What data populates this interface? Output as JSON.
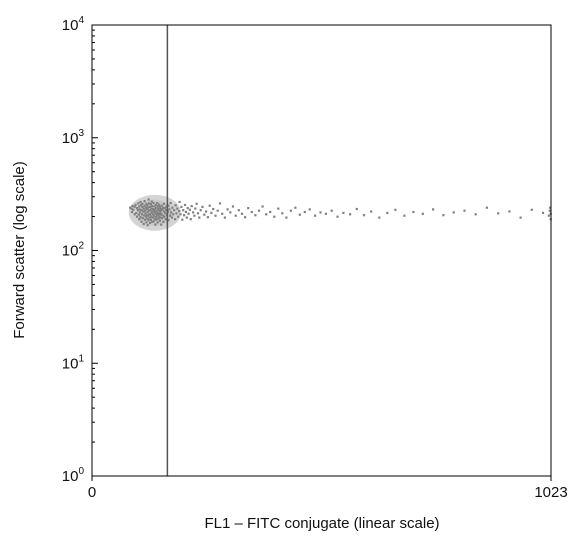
{
  "chart_data": {
    "type": "scatter",
    "title": "",
    "xlabel": "FL1 – FITC conjugate (linear scale)",
    "ylabel": "Forward scatter (log scale)",
    "x_scale": "linear",
    "y_scale": "log",
    "xlim": [
      0,
      1023
    ],
    "ylim": [
      1,
      10000
    ],
    "x_ticks": [
      {
        "value": 0,
        "label": "0"
      },
      {
        "value": 1023,
        "label": "1023"
      }
    ],
    "y_ticks": [
      {
        "value": 1,
        "base": "10",
        "exp": "0"
      },
      {
        "value": 10,
        "base": "10",
        "exp": "1"
      },
      {
        "value": 100,
        "base": "10",
        "exp": "2"
      },
      {
        "value": 1000,
        "base": "10",
        "exp": "3"
      },
      {
        "value": 10000,
        "base": "10",
        "exp": "4"
      }
    ],
    "gate_line": {
      "x": 168
    },
    "grid": false,
    "legend": "none",
    "colors": {
      "axis": "#000000",
      "gate": "#555555",
      "points": "#808080"
    },
    "series": [
      {
        "values": [
          [
            85,
            240
          ],
          [
            88,
            235
          ],
          [
            89,
            220
          ],
          [
            90,
            248
          ],
          [
            92,
            230
          ],
          [
            95,
            210
          ],
          [
            95,
            245
          ],
          [
            97,
            255
          ],
          [
            98,
            215
          ],
          [
            100,
            238
          ],
          [
            100,
            200
          ],
          [
            102,
            228
          ],
          [
            103,
            262
          ],
          [
            104,
            208
          ],
          [
            105,
            246
          ],
          [
            105,
            190
          ],
          [
            106,
            232
          ],
          [
            107,
            218
          ],
          [
            108,
            270
          ],
          [
            108,
            198
          ],
          [
            109,
            252
          ],
          [
            110,
            228
          ],
          [
            110,
            180
          ],
          [
            111,
            210
          ],
          [
            112,
            243
          ],
          [
            112,
            260
          ],
          [
            113,
            194
          ],
          [
            114,
            222
          ],
          [
            115,
            236
          ],
          [
            115,
            172
          ],
          [
            116,
            205
          ],
          [
            117,
            275
          ],
          [
            117,
            250
          ],
          [
            118,
            188
          ],
          [
            118,
            226
          ],
          [
            119,
            214
          ],
          [
            120,
            240
          ],
          [
            120,
            200
          ],
          [
            121,
            260
          ],
          [
            121,
            178
          ],
          [
            122,
            232
          ],
          [
            122,
            208
          ],
          [
            123,
            192
          ],
          [
            123,
            252
          ],
          [
            124,
            220
          ],
          [
            124,
            168
          ],
          [
            125,
            240
          ],
          [
            125,
            204
          ],
          [
            126,
            284
          ],
          [
            126,
            186
          ],
          [
            127,
            228
          ],
          [
            127,
            262
          ],
          [
            128,
            212
          ],
          [
            128,
            196
          ],
          [
            129,
            244
          ],
          [
            129,
            176
          ],
          [
            130,
            226
          ],
          [
            130,
            208
          ],
          [
            131,
            258
          ],
          [
            131,
            188
          ],
          [
            132,
            236
          ],
          [
            132,
            200
          ],
          [
            133,
            216
          ],
          [
            133,
            272
          ],
          [
            134,
            180
          ],
          [
            134,
            248
          ],
          [
            135,
            222
          ],
          [
            135,
            196
          ],
          [
            136,
            234
          ],
          [
            136,
            210
          ],
          [
            137,
            264
          ],
          [
            137,
            182
          ],
          [
            138,
            226
          ],
          [
            138,
            204
          ],
          [
            139,
            246
          ],
          [
            139,
            190
          ],
          [
            140,
            218
          ],
          [
            140,
            232
          ],
          [
            141,
            200
          ],
          [
            141,
            170
          ],
          [
            142,
            254
          ],
          [
            142,
            212
          ],
          [
            143,
            188
          ],
          [
            143,
            240
          ],
          [
            144,
            222
          ],
          [
            144,
            196
          ],
          [
            145,
            264
          ],
          [
            145,
            206
          ],
          [
            146,
            230
          ],
          [
            146,
            178
          ],
          [
            147,
            248
          ],
          [
            147,
            214
          ],
          [
            148,
            192
          ],
          [
            148,
            236
          ],
          [
            149,
            210
          ],
          [
            149,
            256
          ],
          [
            150,
            200
          ],
          [
            150,
            226
          ],
          [
            151,
            184
          ],
          [
            151,
            244
          ],
          [
            152,
            218
          ],
          [
            152,
            196
          ],
          [
            153,
            236
          ],
          [
            153,
            208
          ],
          [
            154,
            170
          ],
          [
            154,
            228
          ],
          [
            155,
            212
          ],
          [
            155,
            250
          ],
          [
            156,
            194
          ],
          [
            157,
            232
          ],
          [
            158,
            204
          ],
          [
            158,
            240
          ],
          [
            159,
            180
          ],
          [
            160,
            222
          ],
          [
            160,
            260
          ],
          [
            161,
            200
          ],
          [
            162,
            238
          ],
          [
            163,
            214
          ],
          [
            164,
            190
          ],
          [
            165,
            228
          ],
          [
            166,
            246
          ],
          [
            167,
            206
          ],
          [
            169,
            220
          ],
          [
            170,
            250
          ],
          [
            170,
            186
          ],
          [
            172,
            232
          ],
          [
            174,
            204
          ],
          [
            175,
            264
          ],
          [
            176,
            218
          ],
          [
            178,
            196
          ],
          [
            179,
            240
          ],
          [
            181,
            210
          ],
          [
            183,
            228
          ],
          [
            185,
            190
          ],
          [
            186,
            252
          ],
          [
            188,
            214
          ],
          [
            190,
            236
          ],
          [
            192,
            200
          ],
          [
            194,
            224
          ],
          [
            195,
            270
          ],
          [
            197,
            210
          ],
          [
            199,
            244
          ],
          [
            201,
            188
          ],
          [
            203,
            228
          ],
          [
            205,
            206
          ],
          [
            207,
            254
          ],
          [
            209,
            220
          ],
          [
            211,
            196
          ],
          [
            213,
            238
          ],
          [
            215,
            212
          ],
          [
            218,
            230
          ],
          [
            220,
            190
          ],
          [
            222,
            248
          ],
          [
            225,
            218
          ],
          [
            228,
            204
          ],
          [
            230,
            236
          ],
          [
            233,
            260
          ],
          [
            236,
            214
          ],
          [
            239,
            196
          ],
          [
            242,
            228
          ],
          [
            246,
            244
          ],
          [
            250,
            208
          ],
          [
            254,
            222
          ],
          [
            258,
            198
          ],
          [
            262,
            250
          ],
          [
            266,
            216
          ],
          [
            270,
            234
          ],
          [
            275,
            204
          ],
          [
            280,
            226
          ],
          [
            285,
            262
          ],
          [
            290,
            212
          ],
          [
            296,
            196
          ],
          [
            302,
            232
          ],
          [
            308,
            218
          ],
          [
            314,
            246
          ],
          [
            320,
            204
          ],
          [
            327,
            228
          ],
          [
            334,
            212
          ],
          [
            341,
            198
          ],
          [
            348,
            238
          ],
          [
            356,
            220
          ],
          [
            364,
            206
          ],
          [
            372,
            226
          ],
          [
            380,
            246
          ],
          [
            388,
            210
          ],
          [
            397,
            220
          ],
          [
            406,
            200
          ],
          [
            415,
            236
          ],
          [
            424,
            214
          ],
          [
            433,
            196
          ],
          [
            443,
            226
          ],
          [
            453,
            240
          ],
          [
            463,
            208
          ],
          [
            474,
            220
          ],
          [
            485,
            232
          ],
          [
            497,
            204
          ],
          [
            509,
            218
          ],
          [
            521,
            212
          ],
          [
            534,
            226
          ],
          [
            547,
            200
          ],
          [
            560,
            216
          ],
          [
            575,
            210
          ],
          [
            590,
            234
          ],
          [
            606,
            206
          ],
          [
            622,
            222
          ],
          [
            640,
            196
          ],
          [
            658,
            216
          ],
          [
            676,
            230
          ],
          [
            696,
            204
          ],
          [
            716,
            220
          ],
          [
            737,
            212
          ],
          [
            760,
            232
          ],
          [
            783,
            206
          ],
          [
            806,
            218
          ],
          [
            830,
            226
          ],
          [
            855,
            210
          ],
          [
            880,
            240
          ],
          [
            905,
            214
          ],
          [
            930,
            222
          ],
          [
            955,
            196
          ],
          [
            980,
            230
          ],
          [
            1005,
            216
          ],
          [
            1018,
            204
          ],
          [
            1020,
            226
          ],
          [
            1021,
            240
          ],
          [
            1022,
            190
          ],
          [
            1022,
            212
          ]
        ]
      }
    ]
  }
}
